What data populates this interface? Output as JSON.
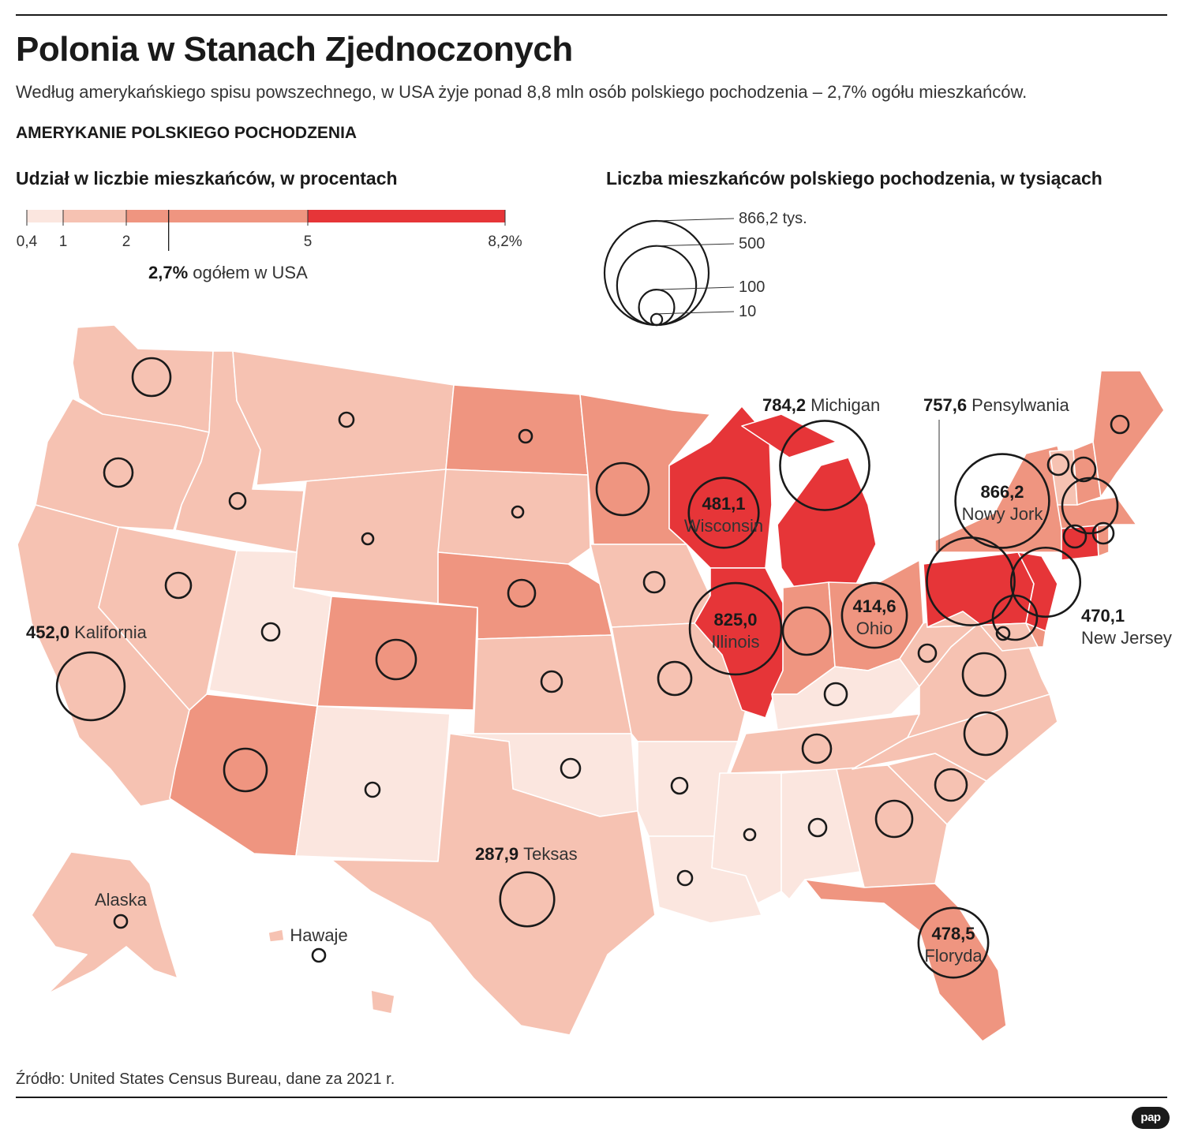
{
  "title": "Polonia w Stanach Zjednoczonych",
  "subtitle": "Według amerykańskiego spisu powszechnego, w USA żyje ponad 8,8 mln osób polskiego pochodzenia – 2,7% ogółu mieszkańców.",
  "section_heading": "AMERYKANIE POLSKIEGO POCHODZENIA",
  "share_legend": {
    "heading": "Udział w liczbie mieszkańców, w procentach",
    "breaks": [
      {
        "label": "0,4",
        "value": 0.4
      },
      {
        "label": "1",
        "value": 1
      },
      {
        "label": "2",
        "value": 2
      },
      {
        "label": "5",
        "value": 5
      },
      {
        "label": "8,2%",
        "value": 8.2
      }
    ],
    "colors": [
      "#fbe6df",
      "#f6c2b2",
      "#ef9580",
      "#e63538"
    ],
    "national_value": "2,7%",
    "national_text": "ogółem w USA",
    "national_share": 2.7
  },
  "size_legend": {
    "heading": "Liczba mieszkańców polskiego pochodzenia, w tysiącach",
    "items": [
      {
        "label": "866,2 tys.",
        "value": 866.2
      },
      {
        "label": "500",
        "value": 500
      },
      {
        "label": "100",
        "value": 100
      },
      {
        "label": "10",
        "value": 10
      }
    ]
  },
  "map": {
    "background_color": "#f6c2b2",
    "border_color": "#ffffff",
    "states": [
      {
        "id": "WA",
        "class": 1
      },
      {
        "id": "OR",
        "class": 1
      },
      {
        "id": "CA",
        "class": 1
      },
      {
        "id": "ID",
        "class": 1
      },
      {
        "id": "NV",
        "class": 1
      },
      {
        "id": "MT",
        "class": 1
      },
      {
        "id": "WY",
        "class": 1
      },
      {
        "id": "UT",
        "class": 0
      },
      {
        "id": "AZ",
        "class": 2
      },
      {
        "id": "CO",
        "class": 2
      },
      {
        "id": "NM",
        "class": 0
      },
      {
        "id": "ND",
        "class": 2
      },
      {
        "id": "SD",
        "class": 1
      },
      {
        "id": "NE",
        "class": 2
      },
      {
        "id": "KS",
        "class": 1
      },
      {
        "id": "OK",
        "class": 0
      },
      {
        "id": "TX",
        "class": 1
      },
      {
        "id": "MN",
        "class": 2
      },
      {
        "id": "IA",
        "class": 1
      },
      {
        "id": "MO",
        "class": 1
      },
      {
        "id": "AR",
        "class": 0
      },
      {
        "id": "LA",
        "class": 0
      },
      {
        "id": "WI",
        "class": 3
      },
      {
        "id": "IL",
        "class": 3
      },
      {
        "id": "MI",
        "class": 3
      },
      {
        "id": "IN",
        "class": 2
      },
      {
        "id": "OH",
        "class": 2
      },
      {
        "id": "KY",
        "class": 0
      },
      {
        "id": "TN",
        "class": 1
      },
      {
        "id": "MS",
        "class": 0
      },
      {
        "id": "AL",
        "class": 0
      },
      {
        "id": "GA",
        "class": 1
      },
      {
        "id": "FL",
        "class": 2
      },
      {
        "id": "SC",
        "class": 1
      },
      {
        "id": "NC",
        "class": 1
      },
      {
        "id": "VA",
        "class": 1
      },
      {
        "id": "WV",
        "class": 1
      },
      {
        "id": "PA",
        "class": 3
      },
      {
        "id": "NY",
        "class": 2
      },
      {
        "id": "NJ",
        "class": 3
      },
      {
        "id": "DE",
        "class": 2
      },
      {
        "id": "MD",
        "class": 1
      },
      {
        "id": "CT",
        "class": 3
      },
      {
        "id": "RI",
        "class": 2
      },
      {
        "id": "MA",
        "class": 2
      },
      {
        "id": "VT",
        "class": 1
      },
      {
        "id": "NH",
        "class": 2
      },
      {
        "id": "ME",
        "class": 2
      },
      {
        "id": "AK",
        "class": 1
      },
      {
        "id": "HI",
        "class": 1
      }
    ],
    "labeled_states": [
      {
        "id": "CA",
        "value": "452,0",
        "name": "Kalifornia",
        "thousands": 452.0
      },
      {
        "id": "MI",
        "value": "784,2",
        "name": "Michigan",
        "thousands": 784.2
      },
      {
        "id": "PA",
        "value": "757,6",
        "name": "Pensylwania",
        "thousands": 757.6
      },
      {
        "id": "NY",
        "value": "866,2",
        "name": "Nowy Jork",
        "thousands": 866.2
      },
      {
        "id": "WI",
        "value": "481,1",
        "name": "Wisconsin",
        "thousands": 481.1
      },
      {
        "id": "IL",
        "value": "825,0",
        "name": "Illinois",
        "thousands": 825.0
      },
      {
        "id": "OH",
        "value": "414,6",
        "name": "Ohio",
        "thousands": 414.6
      },
      {
        "id": "NJ",
        "value": "470,1",
        "name": "New Jersey",
        "thousands": 470.1
      },
      {
        "id": "TX",
        "value": "287,9",
        "name": "Teksas",
        "thousands": 287.9
      },
      {
        "id": "FL",
        "value": "478,5",
        "name": "Floryda",
        "thousands": 478.5
      }
    ],
    "name_only_labels": [
      {
        "id": "AK",
        "name": "Alaska"
      },
      {
        "id": "HI",
        "name": "Hawaje"
      }
    ],
    "unlabeled_bubbles": [
      {
        "id": "WA"
      },
      {
        "id": "OR"
      },
      {
        "id": "ID"
      },
      {
        "id": "MT"
      },
      {
        "id": "WY"
      },
      {
        "id": "NV"
      },
      {
        "id": "UT"
      },
      {
        "id": "CO"
      },
      {
        "id": "AZ"
      },
      {
        "id": "NM"
      },
      {
        "id": "ND"
      },
      {
        "id": "SD"
      },
      {
        "id": "NE"
      },
      {
        "id": "KS"
      },
      {
        "id": "OK"
      },
      {
        "id": "MN"
      },
      {
        "id": "IA"
      },
      {
        "id": "MO"
      },
      {
        "id": "AR"
      },
      {
        "id": "LA"
      },
      {
        "id": "MS"
      },
      {
        "id": "AL"
      },
      {
        "id": "TN"
      },
      {
        "id": "KY"
      },
      {
        "id": "IN"
      },
      {
        "id": "WV"
      },
      {
        "id": "VA"
      },
      {
        "id": "NC"
      },
      {
        "id": "SC"
      },
      {
        "id": "GA"
      },
      {
        "id": "MD"
      },
      {
        "id": "DE"
      },
      {
        "id": "CT"
      },
      {
        "id": "MA"
      },
      {
        "id": "RI"
      },
      {
        "id": "VT"
      },
      {
        "id": "NH"
      },
      {
        "id": "ME"
      },
      {
        "id": "AK"
      },
      {
        "id": "HI"
      }
    ]
  },
  "source": "Źródło: United States Census Bureau, dane za 2021 r.",
  "logo": "pap"
}
